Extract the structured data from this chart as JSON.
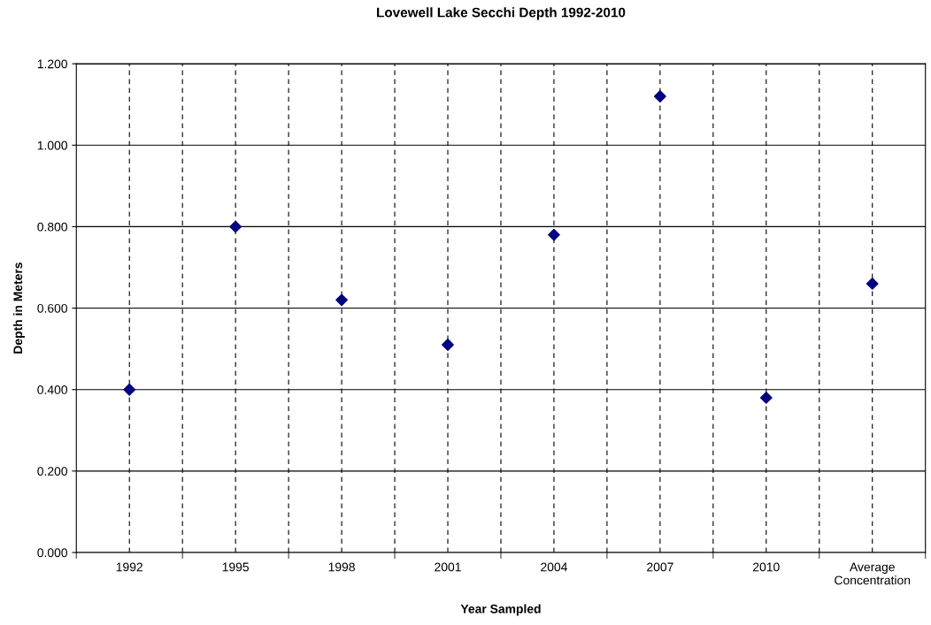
{
  "chart_data": {
    "type": "scatter",
    "title": "Lovewell Lake Secchi Depth 1992-2010",
    "xlabel": "Year Sampled",
    "ylabel": "Depth in Meters",
    "categories": [
      "1992",
      "1995",
      "1998",
      "2001",
      "2004",
      "2007",
      "2010",
      "Average\nConcentration"
    ],
    "series": [
      {
        "color": "#000080",
        "values": [
          0.4,
          0.8,
          0.62,
          0.51,
          0.78,
          1.12,
          0.38,
          0.66
        ]
      }
    ],
    "ylim": [
      0,
      1.2
    ],
    "yticks": [
      {
        "value": 0,
        "label": "0.000"
      },
      {
        "value": 0.2,
        "label": "0.200"
      },
      {
        "value": 0.4,
        "label": "0.400"
      },
      {
        "value": 0.6,
        "label": "0.600"
      },
      {
        "value": 0.8,
        "label": "0.800"
      },
      {
        "value": 1.0,
        "label": "1.000"
      },
      {
        "value": 1.2,
        "label": "1.200"
      }
    ],
    "grid": true,
    "marker": "diamond"
  }
}
